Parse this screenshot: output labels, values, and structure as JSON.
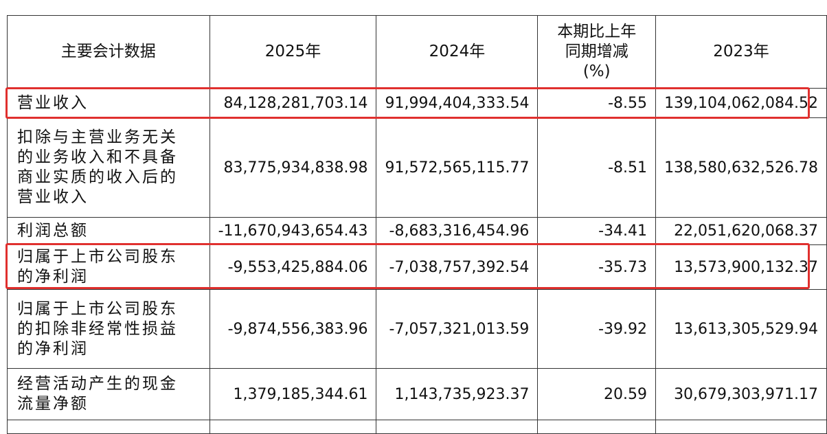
{
  "table": {
    "header": [
      [
        "主要会计数据"
      ],
      [
        "2025年"
      ],
      [
        "2024年"
      ],
      [
        "本期比上年",
        "同期增减",
        "(%)"
      ],
      [
        "2023年"
      ]
    ],
    "rows": [
      [
        [
          "营业收入"
        ],
        "84,128,281,703.14",
        "91,994,404,333.54",
        "-8.55",
        "139,104,062,084.52"
      ],
      [
        [
          "扣除与主营业务无关",
          "的业务收入和不具备",
          "商业实质的收入后的",
          "营业收入"
        ],
        "83,775,934,838.98",
        "91,572,565,115.77",
        "-8.51",
        "138,580,632,526.78"
      ],
      [
        [
          "利润总额"
        ],
        "-11,670,943,654.43",
        "-8,683,316,454.96",
        "-34.41",
        "22,051,620,068.37"
      ],
      [
        [
          "归属于上市公司股东",
          "的净利润"
        ],
        "-9,553,425,884.06",
        "-7,038,757,392.54",
        "-35.73",
        "13,573,900,132.37"
      ],
      [
        [
          "归属于上市公司股东",
          "的扣除非经常性损益",
          "的净利润"
        ],
        "-9,874,556,383.96",
        "-7,057,321,013.59",
        "-39.92",
        "13,613,305,529.94"
      ],
      [
        [
          "经营活动产生的现金",
          "流量净额"
        ],
        "1,379,185,344.61",
        "1,143,735,923.37",
        "20.59",
        "30,679,303,971.17"
      ]
    ]
  }
}
